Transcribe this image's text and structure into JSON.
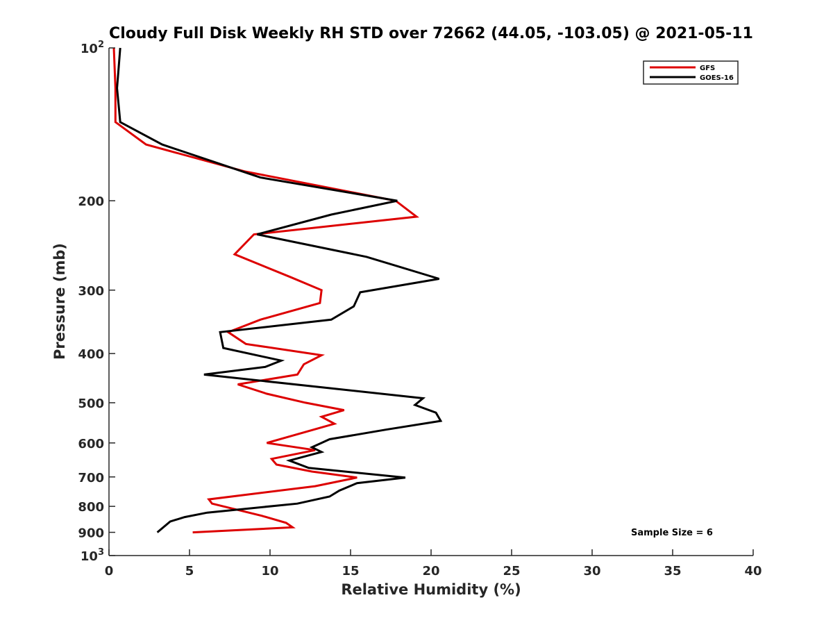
{
  "chart_data": {
    "type": "line",
    "title": "Cloudy Full Disk Weekly RH STD over 72662 (44.05, -103.05) @ 2021-05-11",
    "xlabel": "Relative Humidity (%)",
    "ylabel": "Pressure (mb)",
    "xlim": [
      0,
      40
    ],
    "ylim": [
      100,
      1000
    ],
    "y_scale": "log",
    "y_reversed": true,
    "grid": false,
    "legend_position": "top-right",
    "x_ticks": [
      0,
      5,
      10,
      15,
      20,
      25,
      30,
      35,
      40
    ],
    "y_ticks": [
      {
        "value": 100,
        "base": "10",
        "exp": "2"
      },
      {
        "value": 200,
        "label": "200"
      },
      {
        "value": 300,
        "label": "300"
      },
      {
        "value": 400,
        "label": "400"
      },
      {
        "value": 500,
        "label": "500"
      },
      {
        "value": 600,
        "label": "600"
      },
      {
        "value": 700,
        "label": "700"
      },
      {
        "value": 800,
        "label": "800"
      },
      {
        "value": 900,
        "label": "900"
      },
      {
        "value": 1000,
        "base": "10",
        "exp": "3"
      }
    ],
    "annotation": "Sample Size = 6",
    "series": [
      {
        "name": "GFS",
        "color": "#dd0000",
        "points": [
          [
            0.3,
            100
          ],
          [
            0.4,
            120
          ],
          [
            0.4,
            140
          ],
          [
            2.3,
            155
          ],
          [
            8.4,
            175
          ],
          [
            17.8,
            200
          ],
          [
            19.1,
            215
          ],
          [
            9.0,
            233
          ],
          [
            7.8,
            255
          ],
          [
            11.3,
            283
          ],
          [
            13.2,
            300
          ],
          [
            13.1,
            318
          ],
          [
            9.4,
            343
          ],
          [
            7.4,
            363
          ],
          [
            8.5,
            383
          ],
          [
            13.2,
            403
          ],
          [
            12.1,
            420
          ],
          [
            11.7,
            440
          ],
          [
            8.0,
            460
          ],
          [
            9.8,
            480
          ],
          [
            12.2,
            500
          ],
          [
            14.6,
            517
          ],
          [
            13.2,
            533
          ],
          [
            14.0,
            550
          ],
          [
            9.8,
            600
          ],
          [
            12.8,
            620
          ],
          [
            10.1,
            645
          ],
          [
            10.4,
            662
          ],
          [
            12.6,
            683
          ],
          [
            15.4,
            702
          ],
          [
            12.8,
            730
          ],
          [
            6.2,
            775
          ],
          [
            6.4,
            790
          ],
          [
            9.5,
            835
          ],
          [
            11.0,
            862
          ],
          [
            11.4,
            880
          ],
          [
            5.2,
            900
          ]
        ]
      },
      {
        "name": "GOES-16",
        "color": "#000000",
        "points": [
          [
            0.7,
            100
          ],
          [
            0.5,
            120
          ],
          [
            0.7,
            140
          ],
          [
            3.3,
            155
          ],
          [
            9.4,
            180
          ],
          [
            17.9,
            200
          ],
          [
            13.8,
            213
          ],
          [
            9.2,
            233
          ],
          [
            16.0,
            258
          ],
          [
            20.5,
            285
          ],
          [
            15.6,
            303
          ],
          [
            15.2,
            323
          ],
          [
            13.8,
            343
          ],
          [
            6.9,
            363
          ],
          [
            7.1,
            390
          ],
          [
            10.7,
            413
          ],
          [
            9.7,
            425
          ],
          [
            5.9,
            440
          ],
          [
            19.5,
            490
          ],
          [
            19.0,
            505
          ],
          [
            20.3,
            523
          ],
          [
            20.6,
            543
          ],
          [
            17.2,
            565
          ],
          [
            13.7,
            590
          ],
          [
            12.6,
            612
          ],
          [
            13.2,
            625
          ],
          [
            11.2,
            650
          ],
          [
            12.4,
            672
          ],
          [
            18.4,
            702
          ],
          [
            15.4,
            720
          ],
          [
            14.3,
            745
          ],
          [
            13.7,
            765
          ],
          [
            11.7,
            790
          ],
          [
            6.1,
            823
          ],
          [
            4.7,
            840
          ],
          [
            3.8,
            857
          ],
          [
            3.0,
            900
          ]
        ]
      }
    ]
  }
}
